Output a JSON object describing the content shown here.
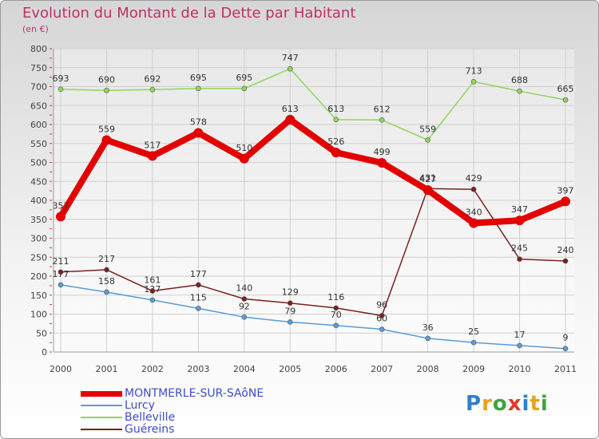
{
  "title": "Evolution du Montant de la Dette par Habitant",
  "unit": "(en €)",
  "brand": {
    "letters": [
      "P",
      "r",
      "o",
      "x",
      "i",
      "t",
      "i"
    ],
    "colors": [
      "#2e7fd0",
      "#e8a21c",
      "#3fa33f",
      "#e03a2a",
      "#2e7fd0",
      "#e8a21c",
      "#3fa33f"
    ]
  },
  "chart_data": {
    "type": "line",
    "title": "Evolution du Montant de la Dette par Habitant",
    "ylabel": "(en €)",
    "xlabel": "",
    "x": [
      "2000",
      "2001",
      "2002",
      "2003",
      "2004",
      "2005",
      "2006",
      "2007",
      "2008",
      "2009",
      "2010",
      "2011"
    ],
    "yticks": [
      0,
      50,
      100,
      150,
      200,
      250,
      300,
      350,
      400,
      450,
      500,
      550,
      600,
      650,
      700,
      750,
      800
    ],
    "ylim": [
      0,
      800
    ],
    "grid": true,
    "legend": "bottom-left",
    "series": [
      {
        "name": "MONTMERLE-SUR-SAôNE",
        "color": "#e30000",
        "values": [
          357,
          559,
          517,
          578,
          510,
          613,
          526,
          499,
          427,
          340,
          347,
          397
        ]
      },
      {
        "name": "Lurcy",
        "color": "#5b9bd5",
        "values": [
          177,
          158,
          137,
          115,
          92,
          79,
          70,
          60,
          36,
          25,
          17,
          9
        ]
      },
      {
        "name": "Belleville",
        "color": "#8fd65a",
        "values": [
          693,
          690,
          692,
          695,
          695,
          747,
          613,
          612,
          559,
          713,
          688,
          665
        ]
      },
      {
        "name": "Guéreins",
        "color": "#7a2020",
        "values": [
          211,
          217,
          161,
          177,
          140,
          129,
          116,
          96,
          431,
          429,
          245,
          240
        ]
      }
    ]
  }
}
